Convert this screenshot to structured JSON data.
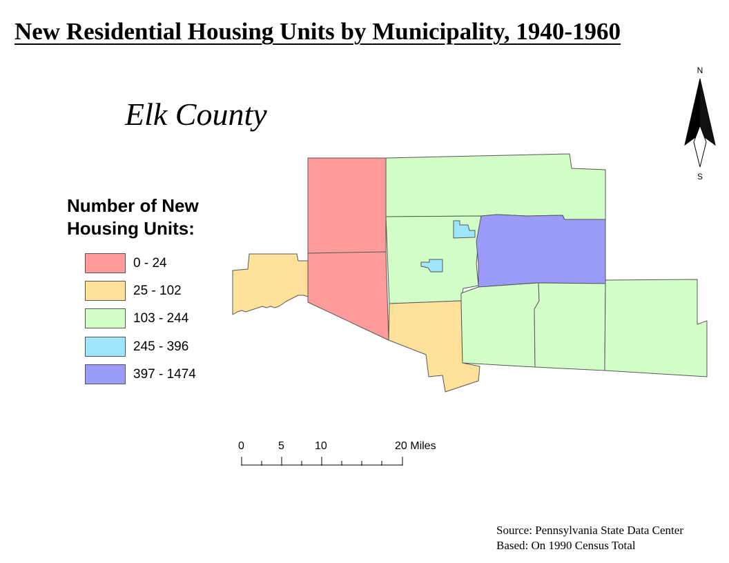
{
  "title": "New Residential Housing Units by Municipality, 1940-1960",
  "subtitle": "Elk County",
  "legend": {
    "title": "Number of New Housing Units:",
    "classes": [
      {
        "label": "0 - 24",
        "color": "#ff9b9b"
      },
      {
        "label": "25 - 102",
        "color": "#ffe199"
      },
      {
        "label": "103 - 244",
        "color": "#d2ffc8"
      },
      {
        "label": "245 - 396",
        "color": "#a0e6fa"
      },
      {
        "label": "397 - 1474",
        "color": "#9b9bfa"
      }
    ]
  },
  "municipalities": [
    {
      "class": 1
    },
    {
      "class": 0
    },
    {
      "class": 0
    },
    {
      "class": 2
    },
    {
      "class": 2
    },
    {
      "class": 4
    },
    {
      "class": 3
    },
    {
      "class": 3
    },
    {
      "class": 1
    },
    {
      "class": 2
    },
    {
      "class": 2
    },
    {
      "class": 2
    }
  ],
  "north_arrow": {
    "north_label": "N",
    "south_label": "S"
  },
  "scale_bar": {
    "ticks": [
      "0",
      "5",
      "10",
      "20 Miles"
    ]
  },
  "source": {
    "line1": "Source: Pennsylvania State Data Center",
    "line2": "Based: On 1990 Census Total"
  },
  "colors": {
    "outline": "#555555",
    "background": "#ffffff"
  }
}
